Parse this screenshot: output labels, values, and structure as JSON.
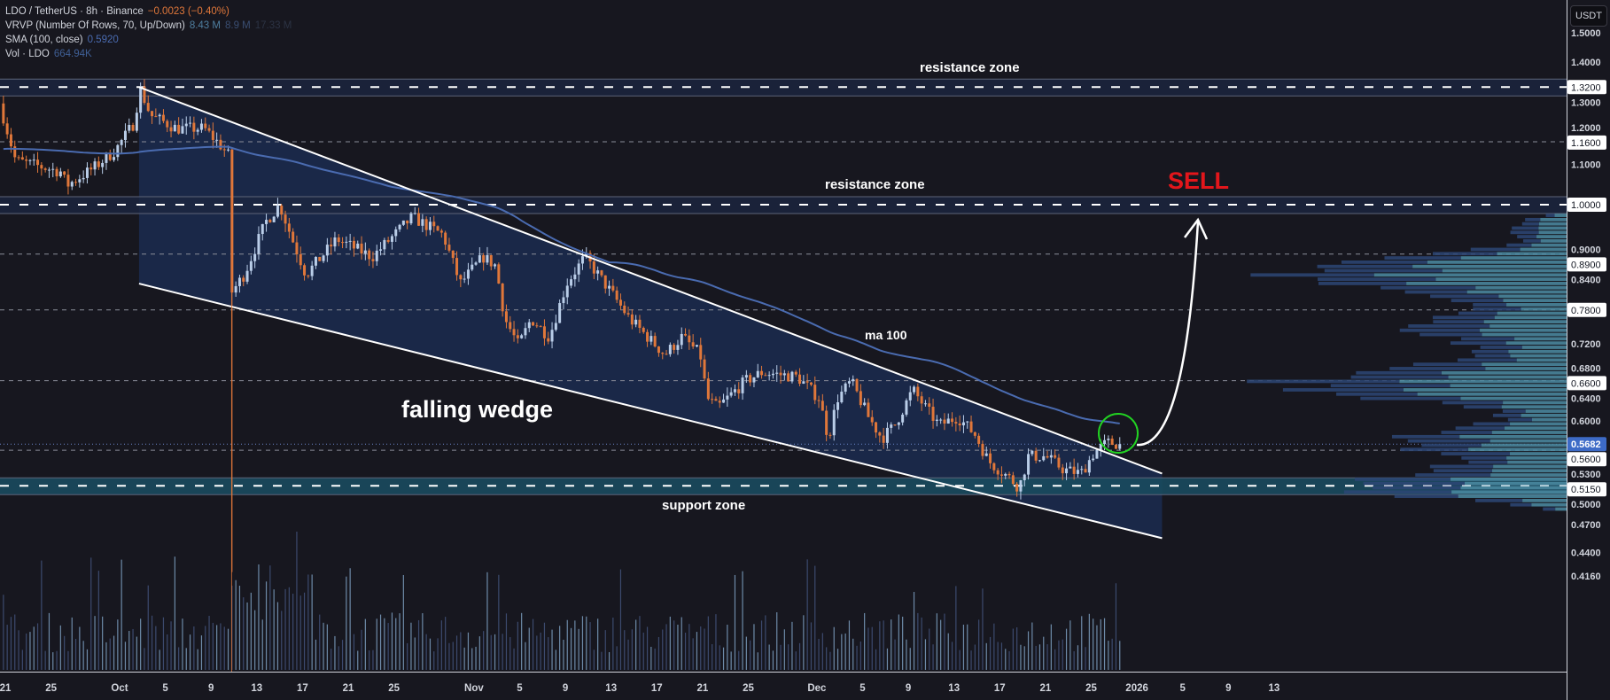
{
  "legend": {
    "symbol": "LDO / TetherUS · 8h · Binance",
    "change": "−0.0023 (−0.40%)",
    "vrvp_label": "VRVP (Number Of Rows, 70, Up/Down)",
    "vrvp_values": [
      "8.43 M",
      "8.9 M",
      "17.33 M"
    ],
    "sma_label": "SMA (100, close)",
    "sma_value": "0.5920",
    "vol_label": "Vol · LDO",
    "vol_value": "664.94K"
  },
  "currency_button": "USDT",
  "colors": {
    "background": "#17171f",
    "up": "#b9cde8",
    "down": "#e0773a",
    "sma": "#4a6bb0",
    "wedge_fill": "#1b2a4c",
    "support_fill": "#1a4a5e",
    "sell": "#e3161b",
    "breakout_circle": "#22d322",
    "current_price": "#3d6bc7"
  },
  "chart_data": {
    "type": "candlestick",
    "interval": "8h",
    "scale": "log",
    "ylim": [
      0.405,
      1.56
    ],
    "x_ticks": [
      "21",
      "25",
      "Oct",
      "5",
      "9",
      "13",
      "17",
      "21",
      "25",
      "Nov",
      "5",
      "9",
      "13",
      "17",
      "21",
      "25",
      "Dec",
      "5",
      "9",
      "13",
      "17",
      "21",
      "25",
      "2026",
      "5",
      "9",
      "13"
    ],
    "x_tick_days": [
      0,
      4,
      10,
      14,
      18,
      22,
      26,
      30,
      34,
      41,
      45,
      49,
      53,
      57,
      61,
      65,
      71,
      75,
      79,
      83,
      87,
      91,
      95,
      99,
      103,
      107,
      111
    ],
    "y_ticks": [
      "1.5000",
      "1.4000",
      "1.3000",
      "1.2000",
      "1.1000",
      "0.9000",
      "0.8400",
      "0.7200",
      "0.6800",
      "0.6400",
      "0.6000",
      "0.5300",
      "0.5000",
      "0.4700",
      "0.4400",
      "0.4160"
    ],
    "price_path": [
      [
        -0.5,
        1.27
      ],
      [
        0.9,
        1.11
      ],
      [
        5,
        1.08
      ],
      [
        5.3,
        1.045
      ],
      [
        7.7,
        1.09
      ],
      [
        9.6,
        1.136
      ],
      [
        11.2,
        1.21
      ],
      [
        11.8,
        1.315
      ],
      [
        12.7,
        1.235
      ],
      [
        15,
        1.197
      ],
      [
        17.4,
        1.197
      ],
      [
        18.9,
        1.148
      ],
      [
        19.5,
        1.124
      ],
      [
        19.8,
        0.813
      ],
      [
        20.9,
        0.848
      ],
      [
        22.8,
        0.961
      ],
      [
        24,
        1.0
      ],
      [
        25.1,
        0.922
      ],
      [
        26.3,
        0.848
      ],
      [
        29,
        0.922
      ],
      [
        32.1,
        0.884
      ],
      [
        35.6,
        0.971
      ],
      [
        38.3,
        0.931
      ],
      [
        39.8,
        0.83
      ],
      [
        41.8,
        0.884
      ],
      [
        42.9,
        0.866
      ],
      [
        43.7,
        0.764
      ],
      [
        44.9,
        0.717
      ],
      [
        46,
        0.764
      ],
      [
        47.6,
        0.732
      ],
      [
        49.1,
        0.83
      ],
      [
        50.7,
        0.884
      ],
      [
        53,
        0.813
      ],
      [
        54.6,
        0.764
      ],
      [
        57.7,
        0.702
      ],
      [
        59.2,
        0.732
      ],
      [
        60.8,
        0.702
      ],
      [
        61.4,
        0.633
      ],
      [
        62.3,
        0.619
      ],
      [
        64.7,
        0.659
      ],
      [
        66.2,
        0.673
      ],
      [
        69.3,
        0.666
      ],
      [
        71.2,
        0.633
      ],
      [
        72,
        0.576
      ],
      [
        72.8,
        0.633
      ],
      [
        74,
        0.659
      ],
      [
        75.5,
        0.606
      ],
      [
        76.7,
        0.576
      ],
      [
        77.8,
        0.594
      ],
      [
        79.4,
        0.646
      ],
      [
        80.5,
        0.619
      ],
      [
        81.7,
        0.594
      ],
      [
        83.3,
        0.606
      ],
      [
        84.8,
        0.582
      ],
      [
        86,
        0.546
      ],
      [
        87.9,
        0.524
      ],
      [
        88.7,
        0.513
      ],
      [
        89.5,
        0.552
      ],
      [
        91,
        0.552
      ],
      [
        92.6,
        0.535
      ],
      [
        94.1,
        0.53
      ],
      [
        95.3,
        0.558
      ],
      [
        96.4,
        0.57
      ],
      [
        97.8,
        0.5682
      ]
    ],
    "sma_period": 100,
    "sma_last": 0.592,
    "current_price": 0.5682,
    "key_levels": [
      {
        "price": 1.32,
        "label": "1.3200",
        "style": "zone"
      },
      {
        "price": 1.16,
        "label": "1.1600",
        "style": "dashed"
      },
      {
        "price": 1.0,
        "label": "1.0000",
        "style": "zone"
      },
      {
        "price": 0.89,
        "label": "0.8900",
        "style": "dashed"
      },
      {
        "price": 0.78,
        "label": "0.7800",
        "style": "dashed"
      },
      {
        "price": 0.66,
        "label": "0.6600",
        "style": "dashed"
      },
      {
        "price": 0.56,
        "label": "0.5600",
        "style": "dashed"
      },
      {
        "price": 0.515,
        "label": "0.5150",
        "style": "support"
      }
    ],
    "current_price_label": "0.5682",
    "wedge": {
      "start_day": 11.7,
      "end_day": 101.2,
      "upper": [
        1.32,
        0.53
      ],
      "lower": [
        0.83,
        0.455
      ]
    },
    "annotations": {
      "resistance_top": "resistance zone",
      "resistance_mid": "resistance zone",
      "sell": "SELL",
      "ma": "ma 100",
      "pattern": "falling wedge",
      "support": "support zone"
    }
  }
}
